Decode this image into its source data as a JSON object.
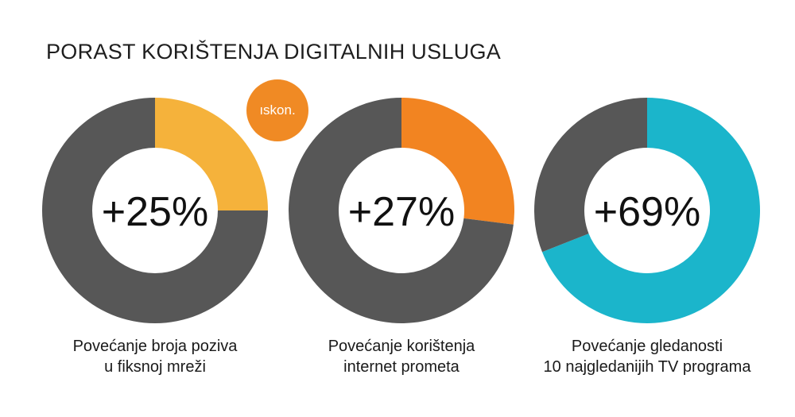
{
  "title": "PORAST KORIŠTENJA DIGITALNIH USLUGA",
  "logo": {
    "text": "ıskon.",
    "color": "#f08a24"
  },
  "colors": {
    "track": "#575757",
    "hole": "#ffffff"
  },
  "chart_data": [
    {
      "type": "pie",
      "value_label": "+25%",
      "slices": [
        {
          "value": 25,
          "color": "#f5b23b"
        },
        {
          "value": 75,
          "color": "#575757"
        }
      ],
      "caption": [
        "Povećanje broja poziva",
        "u fiksnoj mreži"
      ]
    },
    {
      "type": "pie",
      "value_label": "+27%",
      "slices": [
        {
          "value": 27,
          "color": "#f28421"
        },
        {
          "value": 73,
          "color": "#575757"
        }
      ],
      "caption": [
        "Povećanje korištenja",
        "internet prometa"
      ]
    },
    {
      "type": "pie",
      "value_label": "+69%",
      "slices": [
        {
          "value": 69,
          "color": "#1bb5cb"
        },
        {
          "value": 31,
          "color": "#575757"
        }
      ],
      "caption": [
        "Povećanje gledanosti",
        "10 najgledanijih TV programa"
      ]
    }
  ]
}
